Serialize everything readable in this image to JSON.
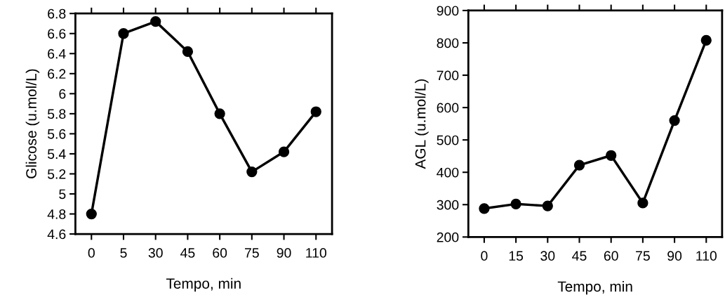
{
  "chart_data": [
    {
      "type": "line",
      "xlabel": "Tempo, min",
      "ylabel": "Glicose (u.mol/L)",
      "categories": [
        "0",
        "5",
        "30",
        "45",
        "60",
        "75",
        "90",
        "110"
      ],
      "series": [
        {
          "color": "#000000",
          "values": [
            4.8,
            6.6,
            6.72,
            6.42,
            5.8,
            5.22,
            5.42,
            5.82
          ]
        }
      ],
      "ylim": [
        4.6,
        6.8
      ],
      "yticks": [
        4.6,
        4.8,
        5,
        5.2,
        5.4,
        5.6,
        5.8,
        6,
        6.2,
        6.4,
        6.6,
        6.8
      ],
      "marker": "circle",
      "line_style": "solid",
      "grid": false
    },
    {
      "type": "line",
      "xlabel": "Tempo, min",
      "ylabel": "AGL (u.mol/L)",
      "categories": [
        "0",
        "15",
        "30",
        "45",
        "60",
        "75",
        "90",
        "110"
      ],
      "series": [
        {
          "color": "#000000",
          "values": [
            288,
            302,
            296,
            422,
            452,
            305,
            560,
            808
          ]
        }
      ],
      "ylim": [
        200,
        900
      ],
      "yticks": [
        200,
        300,
        400,
        500,
        600,
        700,
        800,
        900
      ],
      "marker": "circle",
      "line_style": "solid",
      "grid": false
    }
  ]
}
